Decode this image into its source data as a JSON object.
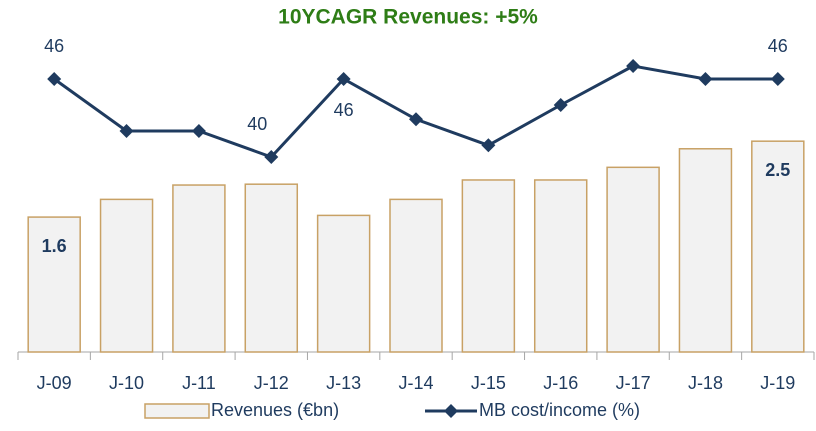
{
  "chart_data": {
    "type": "bar_line",
    "title": "10YCAGR Revenues: +5%",
    "categories": [
      "J-09",
      "J-10",
      "J-11",
      "J-12",
      "J-13",
      "J-14",
      "J-15",
      "J-16",
      "J-17",
      "J-18",
      "J-19"
    ],
    "series": [
      {
        "name": "Revenues (€bn)",
        "type": "bar",
        "color": "#f2f2f2",
        "edge_color": "#c8a165",
        "values": [
          1.6,
          1.81,
          1.98,
          1.99,
          1.62,
          1.81,
          2.04,
          2.04,
          2.19,
          2.41,
          2.5
        ],
        "value_labels": [
          "1.6",
          null,
          null,
          null,
          null,
          null,
          null,
          null,
          null,
          null,
          "2.5"
        ]
      },
      {
        "name": "MB cost/income (%)",
        "type": "line",
        "axis": "y2",
        "color": "#1f3b5f",
        "values": [
          46,
          42,
          42,
          40,
          46,
          42.9,
          40.9,
          44,
          47,
          46,
          46
        ],
        "value_labels": [
          "46",
          null,
          null,
          "40",
          "46",
          null,
          null,
          null,
          null,
          null,
          "46"
        ]
      }
    ],
    "ylim": [
      0,
      3.7
    ],
    "y2lim": [
      25,
      49
    ],
    "legend": "bottom"
  }
}
